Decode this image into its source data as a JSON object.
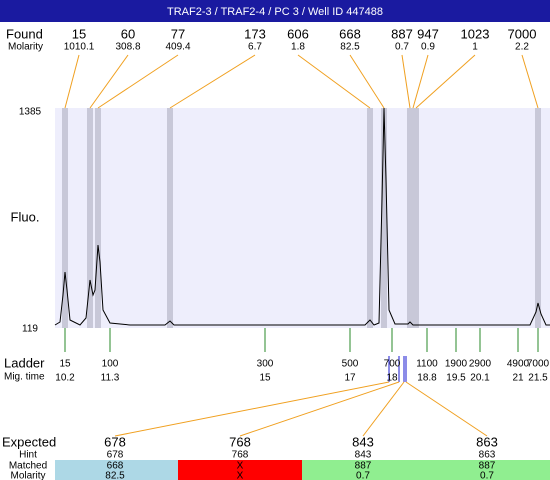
{
  "header": {
    "title": "TRAF2-3 / TRAF2-4 / PC 3 / Well ID 447488"
  },
  "found": {
    "label": "Found",
    "molarity_label": "Molarity",
    "peaks": [
      {
        "size": "15",
        "molarity": "1010.1"
      },
      {
        "size": "60",
        "molarity": "308.8"
      },
      {
        "size": "77",
        "molarity": "409.4"
      },
      {
        "size": "173",
        "molarity": "6.7"
      },
      {
        "size": "606",
        "molarity": "1.8"
      },
      {
        "size": "668",
        "molarity": "82.5"
      },
      {
        "size": "887",
        "molarity": "0.7"
      },
      {
        "size": "947",
        "molarity": "0.9"
      },
      {
        "size": "1023",
        "molarity": "1"
      },
      {
        "size": "7000",
        "molarity": "2.2"
      }
    ]
  },
  "plot": {
    "y_label": "Fluo.",
    "y_max": "1385",
    "y_min": "119"
  },
  "ladder": {
    "label": "Ladder",
    "time_label": "Mig. time",
    "entries": [
      {
        "size": "15",
        "time": "10.2"
      },
      {
        "size": "100",
        "time": "11.3"
      },
      {
        "size": "300",
        "time": "15"
      },
      {
        "size": "500",
        "time": "17"
      },
      {
        "size": "700",
        "time": "18"
      },
      {
        "size": "1100",
        "time": "18.8"
      },
      {
        "size": "1900",
        "time": "19.5"
      },
      {
        "size": "2900",
        "time": "20.1"
      },
      {
        "size": "4900",
        "time": "21"
      },
      {
        "size": "7000",
        "time": "21.5"
      }
    ]
  },
  "expected": {
    "labels": [
      "Expected",
      "Hint",
      "Matched",
      "Molarity"
    ],
    "columns": [
      {
        "expected": "678",
        "hint": "678",
        "matched": "668",
        "molarity": "82.5"
      },
      {
        "expected": "768",
        "hint": "768",
        "matched": "X",
        "molarity": "X"
      },
      {
        "expected": "843",
        "hint": "843",
        "matched": "887",
        "molarity": "0.7"
      },
      {
        "expected": "863",
        "hint": "863",
        "matched": "887",
        "molarity": "0.7"
      }
    ]
  }
}
